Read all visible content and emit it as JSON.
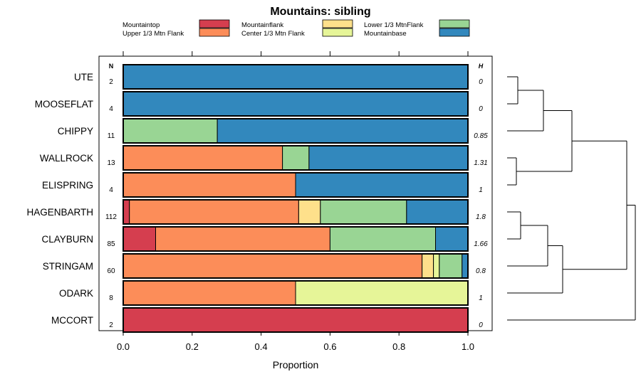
{
  "chart_data": {
    "type": "bar",
    "orientation": "horizontal",
    "stacked": true,
    "title": "Mountains: sibling",
    "xlabel": "Proportion",
    "ylabel": "",
    "xlim": [
      0,
      1
    ],
    "x_ticks": [
      "0.0",
      "0.2",
      "0.4",
      "0.6",
      "0.8",
      "1.0"
    ],
    "x_tick_values": [
      0,
      0.2,
      0.4,
      0.6,
      0.8,
      1.0
    ],
    "n_header": "N",
    "h_header": "H",
    "legend_position": "top",
    "categories": [
      "UTE",
      "MOOSEFLAT",
      "CHIPPY",
      "WALLROCK",
      "ELISPRING",
      "HAGENBARTH",
      "CLAYBURN",
      "STRINGAM",
      "ODARK",
      "MCCORT"
    ],
    "n_values": [
      "2",
      "4",
      "11",
      "13",
      "4",
      "112",
      "85",
      "60",
      "8",
      "2"
    ],
    "h_values": [
      "0",
      "0",
      "0.85",
      "1.31",
      "1",
      "1.8",
      "1.66",
      "0.8",
      "1",
      "0"
    ],
    "series": [
      {
        "name": "Mountaintop",
        "color": "#d53e4f",
        "values": [
          0,
          0,
          0,
          0,
          0,
          0.018,
          0.094,
          0,
          0,
          1.0
        ]
      },
      {
        "name": "Upper 1/3 Mtn Flank",
        "color": "#fc8d59",
        "values": [
          0,
          0,
          0,
          0.462,
          0.5,
          0.491,
          0.506,
          0.867,
          0.5,
          0
        ]
      },
      {
        "name": "Mountainflank",
        "color": "#fee08b",
        "values": [
          0,
          0,
          0,
          0,
          0,
          0.063,
          0,
          0.033,
          0,
          0
        ]
      },
      {
        "name": "Center 1/3 Mtn Flank",
        "color": "#e6f598",
        "values": [
          0,
          0,
          0,
          0,
          0,
          0,
          0,
          0.017,
          0.5,
          0
        ]
      },
      {
        "name": "Lower 1/3 MtnFlank",
        "color": "#99d594",
        "values": [
          0,
          0,
          0.273,
          0.077,
          0,
          0.25,
          0.306,
          0.066,
          0,
          0
        ]
      },
      {
        "name": "Mountainbase",
        "color": "#3288bd",
        "values": [
          1.0,
          1.0,
          0.727,
          0.461,
          0.5,
          0.178,
          0.094,
          0.017,
          0,
          0
        ]
      }
    ],
    "legend_order": [
      "Mountaintop",
      "Mountainflank",
      "Lower 1/3 MtnFlank",
      "Upper 1/3 Mtn Flank",
      "Center 1/3 Mtn Flank",
      "Mountainbase"
    ],
    "dendrogram": {
      "merges": [
        {
          "children": [
            "UTE",
            "MOOSEFLAT"
          ]
        },
        {
          "children": [
            "m0",
            "CHIPPY"
          ]
        },
        {
          "children": [
            "WALLROCK",
            "ELISPRING"
          ]
        },
        {
          "children": [
            "m1",
            "m2"
          ]
        },
        {
          "children": [
            "HAGENBARTH",
            "CLAYBURN"
          ]
        },
        {
          "children": [
            "m4",
            "STRINGAM"
          ]
        },
        {
          "children": [
            "m5",
            "ODARK"
          ]
        },
        {
          "children": [
            "m3",
            "m6"
          ]
        },
        {
          "children": [
            "m7",
            "MCCORT"
          ]
        }
      ]
    }
  }
}
